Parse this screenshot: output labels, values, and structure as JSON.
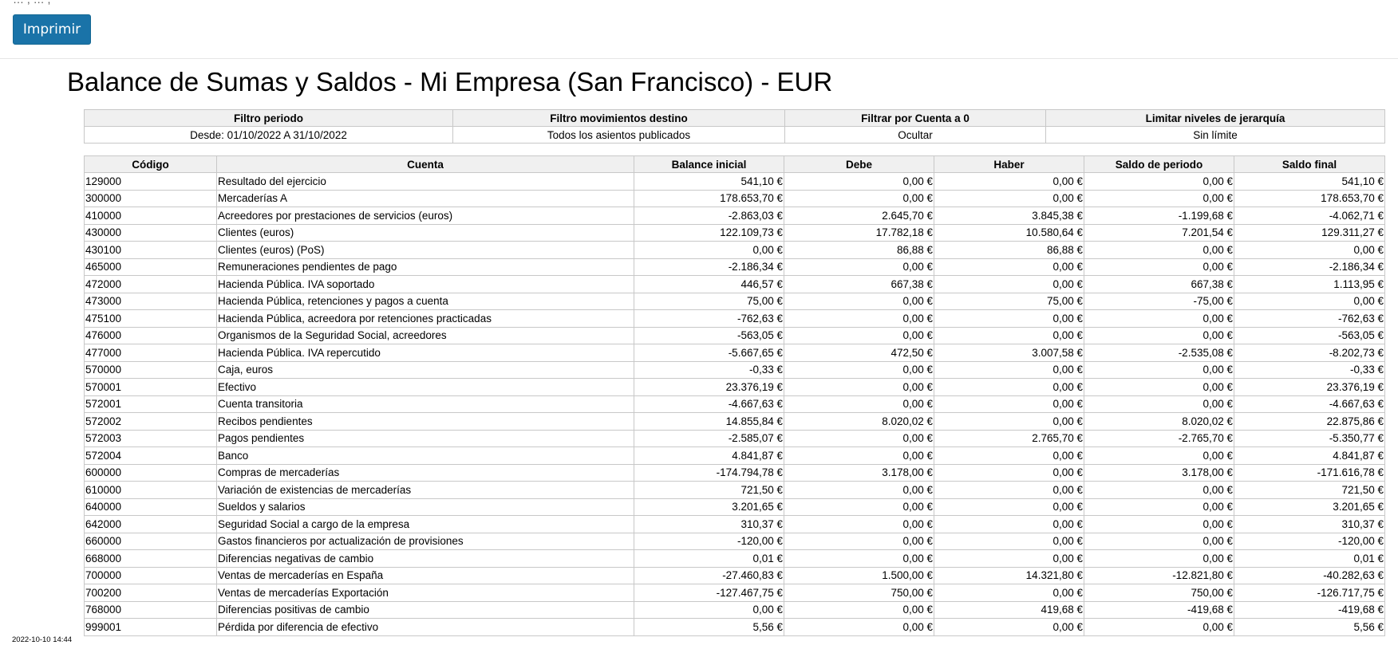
{
  "toolbar": {
    "partial_text": "…  ,                              …  ,",
    "print_label": "Imprimir"
  },
  "report": {
    "title": "Balance de Sumas y Saldos - Mi Empresa (San Francisco) - EUR"
  },
  "filters": {
    "headers": [
      "Filtro periodo",
      "Filtro movimientos destino",
      "Filtrar por Cuenta a 0",
      "Limitar niveles de jerarquía"
    ],
    "values": [
      "Desde: 01/10/2022 A 31/10/2022",
      "Todos los asientos publicados",
      "Ocultar",
      "Sin límite"
    ]
  },
  "table": {
    "headers": [
      "Código",
      "Cuenta",
      "Balance inicial",
      "Debe",
      "Haber",
      "Saldo de periodo",
      "Saldo final"
    ],
    "rows": [
      [
        "129000",
        "Resultado del ejercicio",
        "541,10 €",
        "0,00 €",
        "0,00 €",
        "0,00 €",
        "541,10 €"
      ],
      [
        "300000",
        "Mercaderías A",
        "178.653,70 €",
        "0,00 €",
        "0,00 €",
        "0,00 €",
        "178.653,70 €"
      ],
      [
        "410000",
        "Acreedores por prestaciones de servicios (euros)",
        "-2.863,03 €",
        "2.645,70 €",
        "3.845,38 €",
        "-1.199,68 €",
        "-4.062,71 €"
      ],
      [
        "430000",
        "Clientes (euros)",
        "122.109,73 €",
        "17.782,18 €",
        "10.580,64 €",
        "7.201,54 €",
        "129.311,27 €"
      ],
      [
        "430100",
        "Clientes (euros) (PoS)",
        "0,00 €",
        "86,88 €",
        "86,88 €",
        "0,00 €",
        "0,00 €"
      ],
      [
        "465000",
        "Remuneraciones pendientes de pago",
        "-2.186,34 €",
        "0,00 €",
        "0,00 €",
        "0,00 €",
        "-2.186,34 €"
      ],
      [
        "472000",
        "Hacienda Pública. IVA soportado",
        "446,57 €",
        "667,38 €",
        "0,00 €",
        "667,38 €",
        "1.113,95 €"
      ],
      [
        "473000",
        "Hacienda Pública, retenciones y pagos a cuenta",
        "75,00 €",
        "0,00 €",
        "75,00 €",
        "-75,00 €",
        "0,00 €"
      ],
      [
        "475100",
        "Hacienda Pública, acreedora por retenciones practicadas",
        "-762,63 €",
        "0,00 €",
        "0,00 €",
        "0,00 €",
        "-762,63 €"
      ],
      [
        "476000",
        "Organismos de la Seguridad Social, acreedores",
        "-563,05 €",
        "0,00 €",
        "0,00 €",
        "0,00 €",
        "-563,05 €"
      ],
      [
        "477000",
        "Hacienda Pública. IVA repercutido",
        "-5.667,65 €",
        "472,50 €",
        "3.007,58 €",
        "-2.535,08 €",
        "-8.202,73 €"
      ],
      [
        "570000",
        "Caja, euros",
        "-0,33 €",
        "0,00 €",
        "0,00 €",
        "0,00 €",
        "-0,33 €"
      ],
      [
        "570001",
        "Efectivo",
        "23.376,19 €",
        "0,00 €",
        "0,00 €",
        "0,00 €",
        "23.376,19 €"
      ],
      [
        "572001",
        "Cuenta transitoria",
        "-4.667,63 €",
        "0,00 €",
        "0,00 €",
        "0,00 €",
        "-4.667,63 €"
      ],
      [
        "572002",
        "Recibos pendientes",
        "14.855,84 €",
        "8.020,02 €",
        "0,00 €",
        "8.020,02 €",
        "22.875,86 €"
      ],
      [
        "572003",
        "Pagos pendientes",
        "-2.585,07 €",
        "0,00 €",
        "2.765,70 €",
        "-2.765,70 €",
        "-5.350,77 €"
      ],
      [
        "572004",
        "Banco",
        "4.841,87 €",
        "0,00 €",
        "0,00 €",
        "0,00 €",
        "4.841,87 €"
      ],
      [
        "600000",
        "Compras de mercaderías",
        "-174.794,78 €",
        "3.178,00 €",
        "0,00 €",
        "3.178,00 €",
        "-171.616,78 €"
      ],
      [
        "610000",
        "Variación de existencias de mercaderías",
        "721,50 €",
        "0,00 €",
        "0,00 €",
        "0,00 €",
        "721,50 €"
      ],
      [
        "640000",
        "Sueldos y salarios",
        "3.201,65 €",
        "0,00 €",
        "0,00 €",
        "0,00 €",
        "3.201,65 €"
      ],
      [
        "642000",
        "Seguridad Social a cargo de la empresa",
        "310,37 €",
        "0,00 €",
        "0,00 €",
        "0,00 €",
        "310,37 €"
      ],
      [
        "660000",
        "Gastos financieros por actualización de provisiones",
        "-120,00 €",
        "0,00 €",
        "0,00 €",
        "0,00 €",
        "-120,00 €"
      ],
      [
        "668000",
        "Diferencias negativas de cambio",
        "0,01 €",
        "0,00 €",
        "0,00 €",
        "0,00 €",
        "0,01 €"
      ],
      [
        "700000",
        "Ventas de mercaderías en España",
        "-27.460,83 €",
        "1.500,00 €",
        "14.321,80 €",
        "-12.821,80 €",
        "-40.282,63 €"
      ],
      [
        "700200",
        "Ventas de mercaderías Exportación",
        "-127.467,75 €",
        "750,00 €",
        "0,00 €",
        "750,00 €",
        "-126.717,75 €"
      ],
      [
        "768000",
        "Diferencias positivas de cambio",
        "0,00 €",
        "0,00 €",
        "419,68 €",
        "-419,68 €",
        "-419,68 €"
      ],
      [
        "999001",
        "Pérdida por diferencia de efectivo",
        "5,56 €",
        "0,00 €",
        "0,00 €",
        "0,00 €",
        "5,56 €"
      ]
    ]
  },
  "footer": {
    "timestamp": "2022-10-10 14:44"
  },
  "colors": {
    "print_button": "#1a73a8",
    "header_bg": "#f0f0f0",
    "border": "#c8c8c8"
  }
}
